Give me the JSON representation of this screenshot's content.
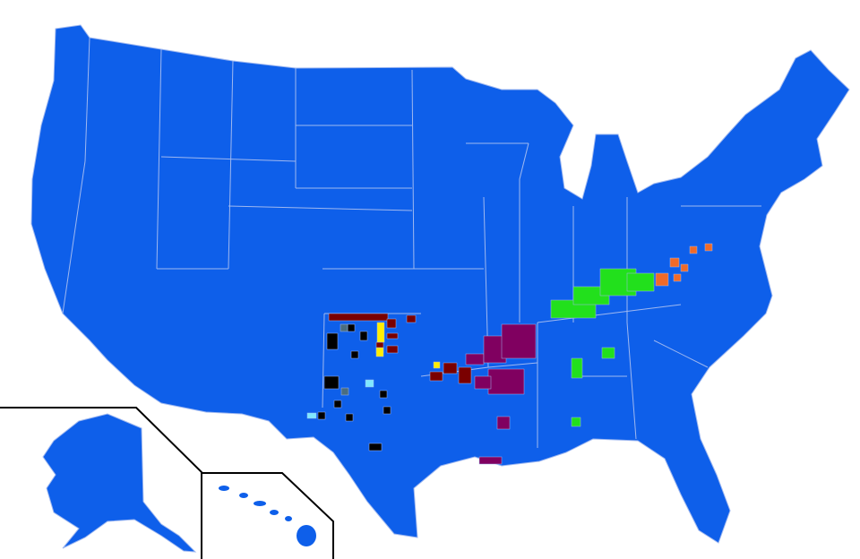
{
  "map": {
    "colors": {
      "base": "#0e5fea",
      "border": "#9fb8f0",
      "background": "#ffffff",
      "inset_frame": "#000000"
    },
    "patch_groups": [
      {
        "name": "appalachia-green",
        "color": "#22e01c"
      },
      {
        "name": "virginia-orange",
        "color": "#f06a28"
      },
      {
        "name": "arkansas-purple",
        "color": "#800060"
      },
      {
        "name": "oklahoma-maroon",
        "color": "#7a0000"
      },
      {
        "name": "yellow",
        "color": "#ffee00"
      },
      {
        "name": "black",
        "color": "#000000"
      },
      {
        "name": "light-cyan",
        "color": "#7fe8ff"
      },
      {
        "name": "gray",
        "color": "#4a6d80"
      }
    ]
  }
}
